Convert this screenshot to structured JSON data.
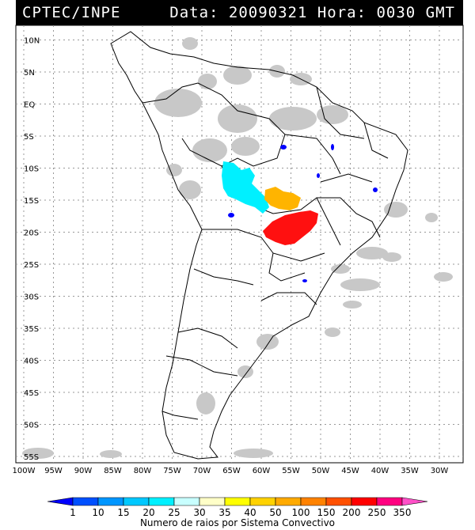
{
  "header": {
    "source": "CPTEC/INPE",
    "datetime": "Data: 20090321 Hora: 0030 GMT"
  },
  "lat_labels": [
    "10N",
    "5N",
    "EQ",
    "5S",
    "10S",
    "15S",
    "20S",
    "25S",
    "30S",
    "35S",
    "40S",
    "45S",
    "50S",
    "55S"
  ],
  "lon_labels": [
    "100W",
    "95W",
    "90W",
    "85W",
    "80W",
    "75W",
    "70W",
    "65W",
    "60W",
    "55W",
    "50W",
    "45W",
    "40W",
    "35W",
    "30W"
  ],
  "legend": {
    "title": "Numero de raios por Sistema Convectivo",
    "values": [
      "1",
      "10",
      "15",
      "20",
      "25",
      "30",
      "35",
      "40",
      "50",
      "100",
      "150",
      "200",
      "250",
      "350"
    ],
    "colors": [
      "#0000ff",
      "#0050ff",
      "#0096ff",
      "#00c8ff",
      "#00f0ff",
      "#c8ffff",
      "#ffffc8",
      "#ffff00",
      "#ffd200",
      "#ffaa00",
      "#ff8200",
      "#ff5000",
      "#ff0000",
      "#ff0080",
      "#ff50c8"
    ]
  },
  "convective_systems": [
    {
      "name": "cyan-system",
      "color": "#00f0ff"
    },
    {
      "name": "orange-system",
      "color": "#ffb400"
    },
    {
      "name": "red-system",
      "color": "#ff1010"
    }
  ],
  "colors": {
    "cloud": "#c8c8c8",
    "coast": "#000000",
    "grid": "#999999"
  }
}
